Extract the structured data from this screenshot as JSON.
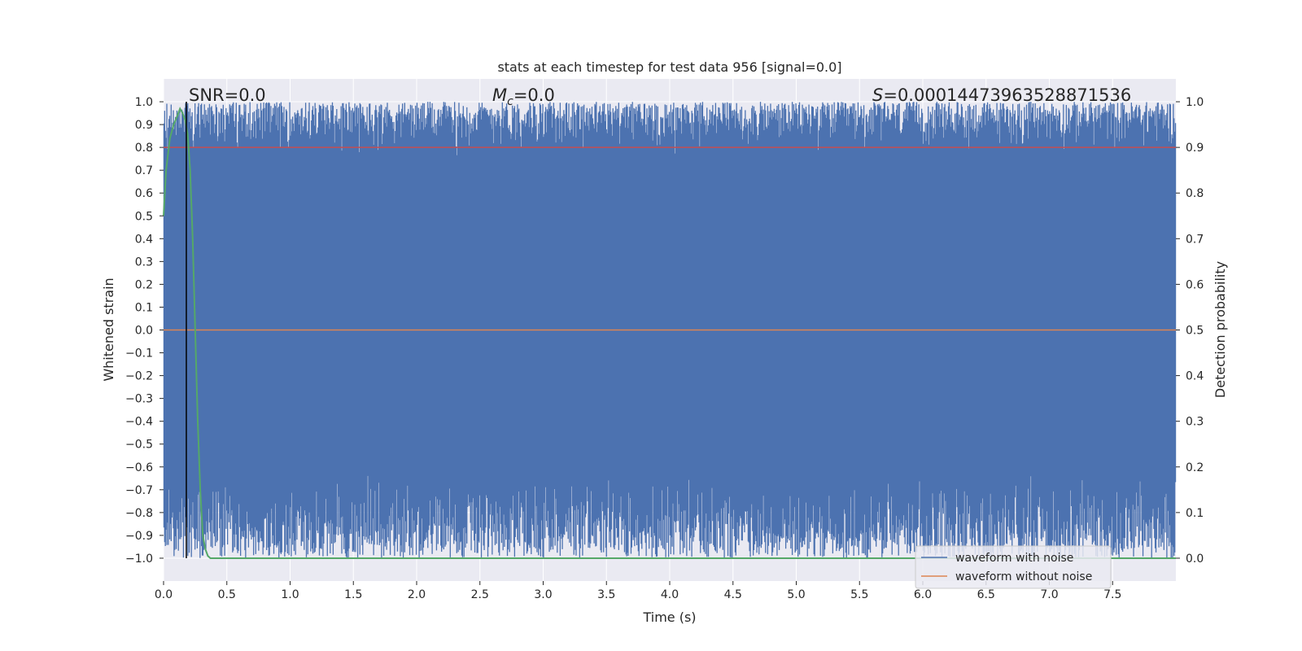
{
  "chart_data": {
    "type": "line",
    "title": "stats at each timestep for test data 956 [signal=0.0]",
    "xlabel": "Time (s)",
    "ylabel_left": "Whitened strain",
    "ylabel_right": "Detection probability",
    "xlim": [
      0.0,
      8.0
    ],
    "ylim_left": [
      -1.1,
      1.1
    ],
    "ylim_right": [
      -0.05,
      1.05
    ],
    "x_ticks": [
      "0.0",
      "0.5",
      "1.0",
      "1.5",
      "2.0",
      "2.5",
      "3.0",
      "3.5",
      "4.0",
      "4.5",
      "5.0",
      "5.5",
      "6.0",
      "6.5",
      "7.0",
      "7.5"
    ],
    "y_ticks_left": [
      "1.0",
      "0.9",
      "0.8",
      "0.7",
      "0.6",
      "0.5",
      "0.4",
      "0.3",
      "0.2",
      "0.1",
      "0.0",
      "−0.1",
      "−0.2",
      "−0.3",
      "−0.4",
      "−0.5",
      "−0.6",
      "−0.7",
      "−0.8",
      "−0.9",
      "−1.0"
    ],
    "y_ticks_right": [
      "1.0",
      "0.9",
      "0.8",
      "0.7",
      "0.6",
      "0.5",
      "0.4",
      "0.3",
      "0.2",
      "0.1",
      "0.0"
    ],
    "grid": true,
    "annotations": {
      "snr": "SNR=0.0",
      "mc_symbol": "M",
      "mc_sub": "c",
      "mc_value": "=0.0",
      "s_symbol": "S",
      "s_value": "=0.00014473963528871536"
    },
    "marker_line_x": 0.18,
    "threshold_probability": 0.9,
    "series": [
      {
        "name": "waveform with noise",
        "axis": "left",
        "color": "#4c72b0",
        "note_range": [
          -1.0,
          1.0
        ]
      },
      {
        "name": "waveform without noise",
        "axis": "left",
        "color": "#dd8452",
        "x": [
          0.0,
          8.0
        ],
        "y": [
          0.0,
          0.0
        ]
      },
      {
        "name": "",
        "axis": "right",
        "color": "#55a868",
        "x": [
          0.0,
          0.02,
          0.05,
          0.08,
          0.11,
          0.13,
          0.15,
          0.17,
          0.19,
          0.21,
          0.23,
          0.25,
          0.27,
          0.29,
          0.31,
          0.33,
          0.35,
          0.37,
          0.4,
          1.0,
          2.0,
          4.0,
          6.0,
          8.0
        ],
        "y": [
          0.75,
          0.85,
          0.92,
          0.95,
          0.97,
          0.985,
          0.975,
          0.96,
          0.93,
          0.85,
          0.7,
          0.5,
          0.3,
          0.15,
          0.05,
          0.02,
          0.005,
          0.0,
          0.0,
          0.0,
          0.0,
          0.0,
          0.0,
          0.0
        ]
      }
    ],
    "threshold_color": "#c44e52",
    "legend": {
      "placement": "lower-right",
      "entries": [
        "waveform with noise",
        "waveform without noise"
      ]
    }
  }
}
